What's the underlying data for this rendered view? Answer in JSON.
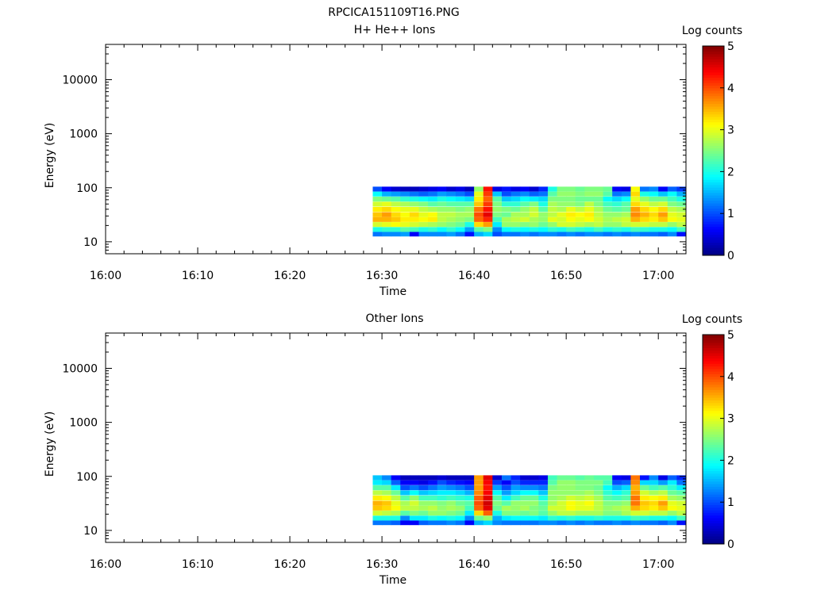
{
  "figure_title": "RPCICA151109T16.PNG",
  "chart_data": [
    {
      "type": "heatmap",
      "title": "H+ He++ Ions",
      "xlabel": "Time",
      "ylabel": "Energy (eV)",
      "x_ticks": [
        "16:00",
        "16:10",
        "16:20",
        "16:30",
        "16:40",
        "16:50",
        "17:00"
      ],
      "x_range": [
        "16:00",
        "17:03"
      ],
      "y_scale": "log",
      "y_ticks": [
        "10",
        "100",
        "1000",
        "10000"
      ],
      "y_range": [
        6,
        45000
      ],
      "colorbar": {
        "label": "Log counts",
        "ticks": [
          "0",
          "1",
          "2",
          "3",
          "4",
          "5"
        ],
        "range": [
          0,
          5
        ],
        "colormap": "jet"
      },
      "energy_bins": [
        14,
        17,
        21,
        26,
        32,
        40,
        50,
        62,
        77,
        95
      ],
      "times": [
        "16:29",
        "16:30",
        "16:31",
        "16:32",
        "16:33",
        "16:34",
        "16:35",
        "16:36",
        "16:37",
        "16:38",
        "16:39",
        "16:40",
        "16:41",
        "16:42",
        "16:43",
        "16:44",
        "16:45",
        "16:46",
        "16:47",
        "16:48",
        "16:49",
        "16:50",
        "16:51",
        "16:52",
        "16:53",
        "16:54",
        "16:55",
        "16:56",
        "16:57",
        "16:58",
        "16:59",
        "17:00",
        "17:01",
        "17:02"
      ],
      "values": [
        [
          1.2,
          2.0,
          2.9,
          3.5,
          3.4,
          3.2,
          2.9,
          2.5,
          1.9,
          1.0
        ],
        [
          1.3,
          2.1,
          3.0,
          3.5,
          3.6,
          3.3,
          3.0,
          2.4,
          1.5,
          0.6
        ],
        [
          1.3,
          2.1,
          3.1,
          3.4,
          3.3,
          3.1,
          2.8,
          2.3,
          1.4,
          0.4
        ],
        [
          1.4,
          2.3,
          3.0,
          3.2,
          3.1,
          3.0,
          2.7,
          2.1,
          1.3,
          0.3
        ],
        [
          0.6,
          2.2,
          2.9,
          3.2,
          3.3,
          3.0,
          2.6,
          2.0,
          1.2,
          0.3
        ],
        [
          1.3,
          2.0,
          2.8,
          3.1,
          3.0,
          2.8,
          2.5,
          1.9,
          1.1,
          0.4
        ],
        [
          1.3,
          2.1,
          2.7,
          3.2,
          3.1,
          2.7,
          2.3,
          1.8,
          1.2,
          0.5
        ],
        [
          1.3,
          1.9,
          2.6,
          2.8,
          2.8,
          2.6,
          2.4,
          2.0,
          1.4,
          0.6
        ],
        [
          1.4,
          2.1,
          2.5,
          2.7,
          2.8,
          2.6,
          2.3,
          1.9,
          1.3,
          0.4
        ],
        [
          1.2,
          1.9,
          2.4,
          2.6,
          2.7,
          2.5,
          2.3,
          1.8,
          1.2,
          0.5
        ],
        [
          0.7,
          1.4,
          2.0,
          2.5,
          2.7,
          2.6,
          2.3,
          1.7,
          1.0,
          0.3
        ],
        [
          1.5,
          2.3,
          3.3,
          3.9,
          4.0,
          3.8,
          3.4,
          3.2,
          3.0,
          2.6
        ],
        [
          1.7,
          2.5,
          3.6,
          4.2,
          4.5,
          4.3,
          4.1,
          3.9,
          4.1,
          4.3
        ],
        [
          1.0,
          1.3,
          1.8,
          2.2,
          2.5,
          2.6,
          2.5,
          2.3,
          1.6,
          0.5
        ],
        [
          1.2,
          1.9,
          2.6,
          2.7,
          2.4,
          2.5,
          2.1,
          1.6,
          1.0,
          0.7
        ],
        [
          1.2,
          2.0,
          2.6,
          2.8,
          2.7,
          2.4,
          2.1,
          1.7,
          1.2,
          0.5
        ],
        [
          1.3,
          1.9,
          2.5,
          2.9,
          2.7,
          2.6,
          2.3,
          1.9,
          1.3,
          0.6
        ],
        [
          1.2,
          2.0,
          2.6,
          2.7,
          2.9,
          2.8,
          2.5,
          1.8,
          1.1,
          0.4
        ],
        [
          1.3,
          1.9,
          2.4,
          2.6,
          2.6,
          2.3,
          2.0,
          1.7,
          1.2,
          0.8
        ],
        [
          1.3,
          2.1,
          2.6,
          3.0,
          2.8,
          2.8,
          2.7,
          2.5,
          2.3,
          2.0
        ],
        [
          1.2,
          2.0,
          2.9,
          2.9,
          3.0,
          2.7,
          2.6,
          2.5,
          2.6,
          2.5
        ],
        [
          1.3,
          2.2,
          2.9,
          3.1,
          3.2,
          3.0,
          2.6,
          2.5,
          2.6,
          2.5
        ],
        [
          1.2,
          2.1,
          2.8,
          3.0,
          3.1,
          2.8,
          2.5,
          2.4,
          2.5,
          2.4
        ],
        [
          1.3,
          2.0,
          2.7,
          3.1,
          3.2,
          3.0,
          2.8,
          2.4,
          2.6,
          2.5
        ],
        [
          1.3,
          2.2,
          2.8,
          2.9,
          2.8,
          2.7,
          2.5,
          2.4,
          2.6,
          2.5
        ],
        [
          1.2,
          2.0,
          2.6,
          2.7,
          2.6,
          2.4,
          2.2,
          1.9,
          2.3,
          2.4
        ],
        [
          1.3,
          2.1,
          2.6,
          2.8,
          2.6,
          2.3,
          2.1,
          1.7,
          1.2,
          0.6
        ],
        [
          1.2,
          2.0,
          2.8,
          2.9,
          2.7,
          2.4,
          2.3,
          1.9,
          1.3,
          0.5
        ],
        [
          1.3,
          2.2,
          2.9,
          3.5,
          3.7,
          3.6,
          3.3,
          3.0,
          3.3,
          3.1
        ],
        [
          1.2,
          2.1,
          2.9,
          3.3,
          3.5,
          3.3,
          3.0,
          2.6,
          2.0,
          1.2
        ],
        [
          1.2,
          2.0,
          2.8,
          3.2,
          3.3,
          3.1,
          2.8,
          2.4,
          1.9,
          1.3
        ],
        [
          1.1,
          2.0,
          2.8,
          3.4,
          3.6,
          3.3,
          2.9,
          2.4,
          1.6,
          0.6
        ],
        [
          1.3,
          1.9,
          2.6,
          3.1,
          3.0,
          2.8,
          2.5,
          2.2,
          1.9,
          1.1
        ],
        [
          0.7,
          2.2,
          2.8,
          3.0,
          2.9,
          2.7,
          2.4,
          2.0,
          1.5,
          0.9
        ]
      ]
    },
    {
      "type": "heatmap",
      "title": "Other Ions",
      "xlabel": "Time",
      "ylabel": "Energy (eV)",
      "x_ticks": [
        "16:00",
        "16:10",
        "16:20",
        "16:30",
        "16:40",
        "16:50",
        "17:00"
      ],
      "x_range": [
        "16:00",
        "17:03"
      ],
      "y_scale": "log",
      "y_ticks": [
        "10",
        "100",
        "1000",
        "10000"
      ],
      "y_range": [
        6,
        45000
      ],
      "colorbar": {
        "label": "Log counts",
        "ticks": [
          "0",
          "1",
          "2",
          "3",
          "4",
          "5"
        ],
        "range": [
          0,
          5
        ],
        "colormap": "jet"
      },
      "energy_bins": [
        14,
        17,
        21,
        26,
        32,
        40,
        50,
        62,
        77,
        95
      ],
      "times": [
        "16:29",
        "16:30",
        "16:31",
        "16:32",
        "16:33",
        "16:34",
        "16:35",
        "16:36",
        "16:37",
        "16:38",
        "16:39",
        "16:40",
        "16:41",
        "16:42",
        "16:43",
        "16:44",
        "16:45",
        "16:46",
        "16:47",
        "16:48",
        "16:49",
        "16:50",
        "16:51",
        "16:52",
        "16:53",
        "16:54",
        "16:55",
        "16:56",
        "16:57",
        "16:58",
        "16:59",
        "17:00",
        "17:01",
        "17:02"
      ],
      "values": [
        [
          1.2,
          2.0,
          2.9,
          3.4,
          3.5,
          3.2,
          2.8,
          2.3,
          1.8,
          1.6
        ],
        [
          1.2,
          2.0,
          2.8,
          3.3,
          3.4,
          3.1,
          2.7,
          2.3,
          1.7,
          1.3
        ],
        [
          1.1,
          2.0,
          2.7,
          3.1,
          3.0,
          2.8,
          2.4,
          1.8,
          1.1,
          0.6
        ],
        [
          0.6,
          1.3,
          2.3,
          2.8,
          2.7,
          2.3,
          1.6,
          1.0,
          0.6,
          0.3
        ],
        [
          0.6,
          1.8,
          2.5,
          2.8,
          2.9,
          2.6,
          1.9,
          1.2,
          0.6,
          0.3
        ],
        [
          1.1,
          1.8,
          2.4,
          2.7,
          2.6,
          2.2,
          1.6,
          1.0,
          0.5,
          0.3
        ],
        [
          1.2,
          2.0,
          2.6,
          2.8,
          2.6,
          2.2,
          1.7,
          1.2,
          0.7,
          0.3
        ],
        [
          1.2,
          1.9,
          2.6,
          2.6,
          2.5,
          2.1,
          1.8,
          1.4,
          1.0,
          0.4
        ],
        [
          1.3,
          2.0,
          2.5,
          2.7,
          2.6,
          2.2,
          1.8,
          1.3,
          0.8,
          0.3
        ],
        [
          1.2,
          1.9,
          2.4,
          2.6,
          2.4,
          2.1,
          1.7,
          1.2,
          0.7,
          0.3
        ],
        [
          0.6,
          1.3,
          1.8,
          2.2,
          2.3,
          2.0,
          1.5,
          1.0,
          0.6,
          0.3
        ],
        [
          1.5,
          2.4,
          3.3,
          3.9,
          4.0,
          3.9,
          3.7,
          3.6,
          3.6,
          3.6
        ],
        [
          1.7,
          2.6,
          3.9,
          4.5,
          4.6,
          4.5,
          4.4,
          4.3,
          4.4,
          4.5
        ],
        [
          1.3,
          1.5,
          2.0,
          2.4,
          2.5,
          2.3,
          1.9,
          1.4,
          0.9,
          0.4
        ],
        [
          1.2,
          1.8,
          2.5,
          2.7,
          2.3,
          1.8,
          1.4,
          1.0,
          0.6,
          1.2
        ],
        [
          1.2,
          1.9,
          2.5,
          2.6,
          2.6,
          2.2,
          1.7,
          1.4,
          1.0,
          0.8
        ],
        [
          1.2,
          1.9,
          2.4,
          2.7,
          2.6,
          2.4,
          1.9,
          1.3,
          0.8,
          0.4
        ],
        [
          1.2,
          1.9,
          2.5,
          2.5,
          2.6,
          2.4,
          1.9,
          1.3,
          0.8,
          0.4
        ],
        [
          1.3,
          1.8,
          2.3,
          2.4,
          2.3,
          2.0,
          1.6,
          1.2,
          0.8,
          0.5
        ],
        [
          1.3,
          2.1,
          2.6,
          2.9,
          2.7,
          2.6,
          2.6,
          2.5,
          2.3,
          2.2
        ],
        [
          1.2,
          2.0,
          2.8,
          2.9,
          2.9,
          2.7,
          2.6,
          2.6,
          2.6,
          2.4
        ],
        [
          1.3,
          2.1,
          2.8,
          3.1,
          3.1,
          2.9,
          2.6,
          2.6,
          2.6,
          2.4
        ],
        [
          1.2,
          2.0,
          2.7,
          3.0,
          3.0,
          2.8,
          2.6,
          2.5,
          2.5,
          2.3
        ],
        [
          1.3,
          2.0,
          2.7,
          3.0,
          3.1,
          2.9,
          2.7,
          2.5,
          2.5,
          2.4
        ],
        [
          1.2,
          2.1,
          2.7,
          2.8,
          2.8,
          2.7,
          2.5,
          2.4,
          2.5,
          2.3
        ],
        [
          1.2,
          2.0,
          2.5,
          2.6,
          2.5,
          2.3,
          2.1,
          1.9,
          2.2,
          2.3
        ],
        [
          1.3,
          2.0,
          2.5,
          2.7,
          2.5,
          2.2,
          1.9,
          1.5,
          1.0,
          0.6
        ],
        [
          1.2,
          2.0,
          2.7,
          2.8,
          2.6,
          2.3,
          2.1,
          1.7,
          1.1,
          0.5
        ],
        [
          1.3,
          2.2,
          2.9,
          3.5,
          3.8,
          3.8,
          3.6,
          3.5,
          3.7,
          3.8
        ],
        [
          1.2,
          2.1,
          2.9,
          3.3,
          3.4,
          3.2,
          2.9,
          2.4,
          1.7,
          0.7
        ],
        [
          1.2,
          2.0,
          2.8,
          3.2,
          3.3,
          3.1,
          2.7,
          2.2,
          1.7,
          1.3
        ],
        [
          1.1,
          2.0,
          2.8,
          3.4,
          3.6,
          3.2,
          2.8,
          2.3,
          1.4,
          0.5
        ],
        [
          1.3,
          1.9,
          2.6,
          3.1,
          3.0,
          2.7,
          2.4,
          2.1,
          1.8,
          1.1
        ],
        [
          0.7,
          2.2,
          2.8,
          3.0,
          2.9,
          2.6,
          2.3,
          1.8,
          1.2,
          0.8
        ]
      ]
    }
  ]
}
